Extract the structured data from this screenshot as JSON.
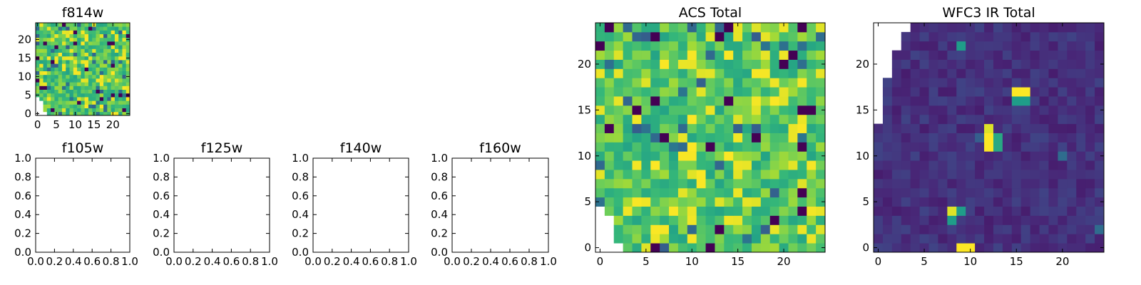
{
  "chart_data": [
    {
      "type": "heatmap",
      "title": "f814w",
      "xlim": [
        -0.5,
        24.5
      ],
      "ylim": [
        -0.5,
        24.5
      ],
      "xticks": [
        0,
        5,
        10,
        15,
        20
      ],
      "yticks": [
        0,
        5,
        10,
        15,
        20
      ],
      "colormap": "viridis",
      "value_range": [
        0,
        1
      ],
      "blank_corner": "bottom-left",
      "grid": false
    },
    {
      "type": "heatmap",
      "title": "f105w",
      "xlim": [
        0,
        1
      ],
      "ylim": [
        0,
        1
      ],
      "xticks": [
        "0.0",
        "0.2",
        "0.4",
        "0.6",
        "0.8",
        "1.0"
      ],
      "yticks": [
        "0.0",
        "0.2",
        "0.4",
        "0.6",
        "0.8",
        "1.0"
      ],
      "empty": true
    },
    {
      "type": "heatmap",
      "title": "f125w",
      "xlim": [
        0,
        1
      ],
      "ylim": [
        0,
        1
      ],
      "xticks": [
        "0.0",
        "0.2",
        "0.4",
        "0.6",
        "0.8",
        "1.0"
      ],
      "yticks": [
        "0.0",
        "0.2",
        "0.4",
        "0.6",
        "0.8",
        "1.0"
      ],
      "empty": true
    },
    {
      "type": "heatmap",
      "title": "f140w",
      "xlim": [
        0,
        1
      ],
      "ylim": [
        0,
        1
      ],
      "xticks": [
        "0.0",
        "0.2",
        "0.4",
        "0.6",
        "0.8",
        "1.0"
      ],
      "yticks": [
        "0.0",
        "0.2",
        "0.4",
        "0.6",
        "0.8",
        "1.0"
      ],
      "empty": true
    },
    {
      "type": "heatmap",
      "title": "f160w",
      "xlim": [
        0,
        1
      ],
      "ylim": [
        0,
        1
      ],
      "xticks": [
        "0.0",
        "0.2",
        "0.4",
        "0.6",
        "0.8",
        "1.0"
      ],
      "yticks": [
        "0.0",
        "0.2",
        "0.4",
        "0.6",
        "0.8",
        "1.0"
      ],
      "empty": true
    },
    {
      "type": "heatmap",
      "title": "ACS Total",
      "xlim": [
        -0.5,
        24.5
      ],
      "ylim": [
        -0.5,
        24.5
      ],
      "xticks": [
        0,
        5,
        10,
        15,
        20
      ],
      "yticks": [
        0,
        5,
        10,
        15,
        20
      ],
      "colormap": "viridis",
      "value_range": [
        0,
        1
      ],
      "blank_corner": "bottom-left",
      "grid": false
    },
    {
      "type": "heatmap",
      "title": "WFC3 IR Total",
      "xlim": [
        -0.5,
        24.5
      ],
      "ylim": [
        -0.5,
        24.5
      ],
      "xticks": [
        0,
        5,
        10,
        15,
        20
      ],
      "yticks": [
        0,
        5,
        10,
        15,
        20
      ],
      "colormap": "viridis",
      "value_range": [
        0,
        1
      ],
      "blank_corner": "top-left",
      "bright_pixels": [
        {
          "x": 15,
          "y": 17,
          "value": 1.0
        },
        {
          "x": 16,
          "y": 17,
          "value": 1.0
        },
        {
          "x": 15,
          "y": 16,
          "value": 0.55
        },
        {
          "x": 16,
          "y": 16,
          "value": 0.55
        },
        {
          "x": 12,
          "y": 13,
          "value": 0.95
        },
        {
          "x": 12,
          "y": 12,
          "value": 1.0
        },
        {
          "x": 12,
          "y": 11,
          "value": 1.0
        },
        {
          "x": 13,
          "y": 12,
          "value": 0.6
        },
        {
          "x": 13,
          "y": 11,
          "value": 0.6
        },
        {
          "x": 11,
          "y": 12,
          "value": 0.3
        },
        {
          "x": 8,
          "y": 4,
          "value": 0.95
        },
        {
          "x": 8,
          "y": 3,
          "value": 0.55
        },
        {
          "x": 9,
          "y": 4,
          "value": 0.55
        },
        {
          "x": 9,
          "y": 0,
          "value": 1.0
        },
        {
          "x": 10,
          "y": 0,
          "value": 1.0
        },
        {
          "x": 9,
          "y": 22,
          "value": 0.55
        },
        {
          "x": 24,
          "y": 2,
          "value": 0.35
        },
        {
          "x": 20,
          "y": 10,
          "value": 0.35
        }
      ],
      "grid": false
    }
  ]
}
